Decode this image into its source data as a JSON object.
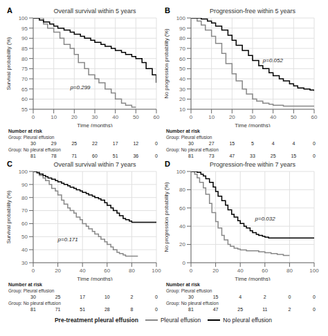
{
  "legend_title": "Pre-treatment pleural effusion",
  "chart_data": [
    {
      "type": "step",
      "panel_label": "A",
      "title": "Overall survival within 5 years",
      "x_label": "Time (months)",
      "y_label": "Survival probability (%)",
      "xlim": [
        0,
        60
      ],
      "ylim": [
        55,
        100
      ],
      "xticks": [
        0,
        10,
        20,
        30,
        40,
        50,
        60
      ],
      "yticks": [
        55,
        60,
        65,
        70,
        75,
        80,
        85,
        90,
        95,
        100
      ],
      "grid": true,
      "annotations": [
        {
          "text": "p=0.299",
          "x": 18,
          "y": 66
        }
      ],
      "series": [
        {
          "name": "Pleural effusion",
          "color": "#888888",
          "x": [
            0,
            5,
            7,
            10,
            13,
            15,
            18,
            20,
            22,
            25,
            27,
            30,
            32,
            35,
            38,
            40,
            43,
            45,
            48,
            50
          ],
          "values": [
            100,
            97,
            95,
            93,
            90,
            87,
            85,
            82,
            78,
            75,
            72,
            70,
            68,
            65,
            63,
            60,
            58,
            57,
            56,
            56
          ]
        },
        {
          "name": "No pleural effusion",
          "color": "#000000",
          "x": [
            0,
            3,
            5,
            8,
            10,
            12,
            15,
            18,
            20,
            23,
            25,
            28,
            30,
            33,
            35,
            38,
            40,
            43,
            45,
            48,
            50,
            53,
            55,
            58,
            60
          ],
          "values": [
            100,
            99,
            98,
            97,
            96,
            95,
            94,
            93,
            92,
            91,
            90,
            89,
            88,
            87,
            86,
            85,
            84,
            83,
            82,
            81,
            80,
            78,
            75,
            72,
            68
          ]
        }
      ],
      "risk_table": {
        "title": "Number at risk",
        "x": [
          0,
          10,
          20,
          30,
          40,
          50,
          60
        ],
        "rows": [
          {
            "name": "Group: Pleural effusion",
            "values": [
              30,
              29,
              25,
              22,
              17,
              12,
              0
            ]
          },
          {
            "name": "Group: No pleural effusion",
            "values": [
              81,
              78,
              71,
              60,
              51,
              36,
              0
            ]
          }
        ]
      }
    },
    {
      "type": "step",
      "panel_label": "B",
      "title": "Progression-free within 5 years",
      "x_label": "Time (months)",
      "y_label": "No progression probability (%)",
      "xlim": [
        0,
        60
      ],
      "ylim": [
        10,
        100
      ],
      "xticks": [
        0,
        10,
        20,
        30,
        40,
        50,
        60
      ],
      "yticks": [
        10,
        20,
        30,
        40,
        50,
        60,
        70,
        80,
        90,
        100
      ],
      "grid": true,
      "annotations": [
        {
          "text": "p=0.052",
          "x": 35,
          "y": 58
        }
      ],
      "series": [
        {
          "name": "Pleural effusion",
          "color": "#888888",
          "x": [
            0,
            3,
            5,
            7,
            10,
            12,
            15,
            17,
            20,
            22,
            25,
            27,
            30,
            32,
            35,
            38,
            40,
            43,
            45,
            48,
            50,
            55,
            60
          ],
          "values": [
            100,
            97,
            93,
            88,
            82,
            75,
            65,
            55,
            45,
            38,
            30,
            25,
            20,
            18,
            16,
            15,
            14,
            14,
            13,
            13,
            13,
            13,
            13
          ]
        },
        {
          "name": "No pleural effusion",
          "color": "#000000",
          "x": [
            0,
            5,
            8,
            10,
            12,
            15,
            18,
            20,
            22,
            25,
            28,
            30,
            33,
            35,
            38,
            40,
            43,
            45,
            48,
            50,
            52,
            55,
            58,
            60
          ],
          "values": [
            100,
            99,
            97,
            95,
            92,
            88,
            83,
            78,
            73,
            68,
            63,
            58,
            53,
            50,
            46,
            43,
            40,
            38,
            35,
            33,
            31,
            30,
            29,
            28
          ]
        }
      ],
      "risk_table": {
        "title": "Number at risk",
        "x": [
          0,
          10,
          20,
          30,
          40,
          50,
          60
        ],
        "rows": [
          {
            "name": "Group: Pleural effusion",
            "values": [
              30,
              27,
              15,
              5,
              4,
              4,
              0
            ]
          },
          {
            "name": "Group: No pleural effusion",
            "values": [
              81,
              73,
              47,
              33,
              25,
              15,
              0
            ]
          }
        ]
      }
    },
    {
      "type": "step",
      "panel_label": "C",
      "title": "Overall survival within 7 years",
      "x_label": "Time (months)",
      "y_label": "Survival probability (%)",
      "xlim": [
        0,
        100
      ],
      "ylim": [
        30,
        100
      ],
      "xticks": [
        0,
        20,
        40,
        60,
        80,
        100
      ],
      "yticks": [
        30,
        40,
        50,
        60,
        70,
        80,
        90,
        100
      ],
      "grid": true,
      "annotations": [
        {
          "text": "p=0.171",
          "x": 20,
          "y": 48
        }
      ],
      "series": [
        {
          "name": "Pleural effusion",
          "color": "#888888",
          "x": [
            0,
            5,
            8,
            10,
            13,
            15,
            18,
            20,
            23,
            25,
            28,
            30,
            33,
            35,
            38,
            40,
            43,
            45,
            48,
            50,
            53,
            55,
            58,
            60,
            63,
            65,
            68,
            70,
            73,
            75,
            80,
            85
          ],
          "values": [
            100,
            97,
            95,
            93,
            90,
            87,
            85,
            82,
            78,
            75,
            72,
            70,
            68,
            65,
            63,
            60,
            58,
            56,
            54,
            52,
            50,
            48,
            46,
            44,
            42,
            40,
            38,
            37,
            36,
            35,
            35,
            35
          ]
        },
        {
          "name": "No pleural effusion",
          "color": "#000000",
          "x": [
            0,
            3,
            5,
            8,
            10,
            12,
            15,
            18,
            20,
            23,
            25,
            28,
            30,
            33,
            35,
            38,
            40,
            43,
            45,
            48,
            50,
            53,
            55,
            58,
            60,
            63,
            65,
            68,
            70,
            73,
            75,
            78,
            80,
            85,
            90,
            95,
            100
          ],
          "values": [
            100,
            99,
            98,
            97,
            96,
            95,
            94,
            93,
            92,
            91,
            90,
            89,
            88,
            87,
            86,
            85,
            84,
            83,
            82,
            81,
            80,
            79,
            78,
            76,
            74,
            72,
            70,
            68,
            66,
            64,
            63,
            62,
            61,
            61,
            61,
            61,
            61
          ]
        }
      ],
      "risk_table": {
        "title": "Number at risk",
        "x": [
          0,
          20,
          40,
          60,
          80,
          100
        ],
        "rows": [
          {
            "name": "Group: Pleural effusion",
            "values": [
              30,
              25,
              17,
              10,
              2,
              0
            ]
          },
          {
            "name": "Group: No pleural effusion",
            "values": [
              81,
              71,
              51,
              28,
              8,
              0
            ]
          }
        ]
      }
    },
    {
      "type": "step",
      "panel_label": "D",
      "title": "Progression-free within 7 years",
      "x_label": "Time (months)",
      "y_label": "No progression probability (%)",
      "xlim": [
        0,
        100
      ],
      "ylim": [
        0,
        100
      ],
      "xticks": [
        0,
        20,
        40,
        60,
        80,
        100
      ],
      "yticks": [
        0,
        20,
        40,
        60,
        80,
        100
      ],
      "grid": true,
      "annotations": [
        {
          "text": "p=0.032",
          "x": 52,
          "y": 48
        }
      ],
      "series": [
        {
          "name": "Pleural effusion",
          "color": "#888888",
          "x": [
            0,
            3,
            5,
            7,
            10,
            12,
            15,
            17,
            20,
            22,
            25,
            27,
            30,
            32,
            35,
            38,
            40,
            43,
            45,
            48,
            50,
            55,
            60,
            65,
            70,
            75,
            80
          ],
          "values": [
            100,
            97,
            93,
            88,
            82,
            75,
            65,
            55,
            45,
            38,
            30,
            25,
            20,
            18,
            16,
            15,
            14,
            14,
            13,
            13,
            13,
            12,
            11,
            10,
            9,
            8,
            8
          ]
        },
        {
          "name": "No pleural effusion",
          "color": "#000000",
          "x": [
            0,
            5,
            8,
            10,
            12,
            15,
            18,
            20,
            22,
            25,
            28,
            30,
            33,
            35,
            38,
            40,
            43,
            45,
            48,
            50,
            53,
            55,
            58,
            60,
            63,
            65,
            68,
            70,
            73,
            75,
            78,
            80,
            85,
            90,
            95,
            100
          ],
          "values": [
            100,
            99,
            97,
            95,
            92,
            88,
            83,
            78,
            73,
            68,
            63,
            58,
            53,
            50,
            46,
            43,
            40,
            38,
            35,
            33,
            31,
            30,
            29,
            28,
            27,
            27,
            27,
            27,
            27,
            27,
            27,
            27,
            27,
            27,
            27,
            27
          ]
        }
      ],
      "risk_table": {
        "title": "Number at risk",
        "x": [
          0,
          20,
          40,
          60,
          80,
          100
        ],
        "rows": [
          {
            "name": "Group: Pleural effusion",
            "values": [
              30,
              15,
              4,
              2,
              0,
              0
            ]
          },
          {
            "name": "Group: No pleural effusion",
            "values": [
              81,
              47,
              25,
              11,
              2,
              0
            ]
          }
        ]
      }
    }
  ]
}
